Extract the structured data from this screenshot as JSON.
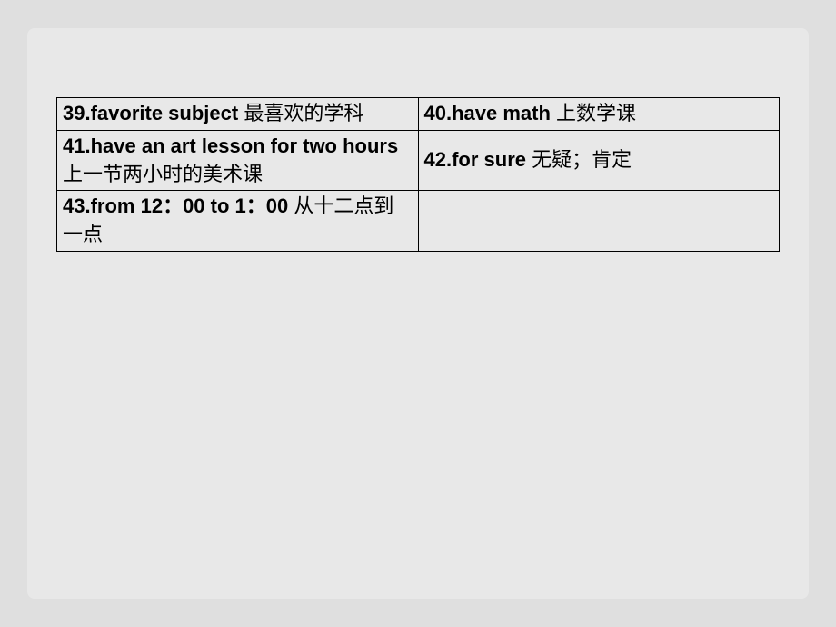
{
  "table": {
    "background_color": "#e8e8e8",
    "page_background_color": "#dfdfdf",
    "border_color": "#000000",
    "text_color": "#000000",
    "font_size": 22,
    "columns": 2,
    "rows": [
      [
        {
          "number": "39.",
          "english": "favorite subject",
          "chinese": "最喜欢的学科"
        },
        {
          "number": "40.",
          "english": "have math",
          "chinese": "上数学课"
        }
      ],
      [
        {
          "number": "41.",
          "english": "have an art lesson for two hours",
          "chinese": "上一节两小时的美术课"
        },
        {
          "number": "42.",
          "english": "for sure",
          "chinese": "无疑；肯定"
        }
      ],
      [
        {
          "number": "43.",
          "english": "from 12：00 to 1：00",
          "chinese": "从十二点到一点"
        },
        {
          "number": "",
          "english": "",
          "chinese": ""
        }
      ]
    ]
  }
}
